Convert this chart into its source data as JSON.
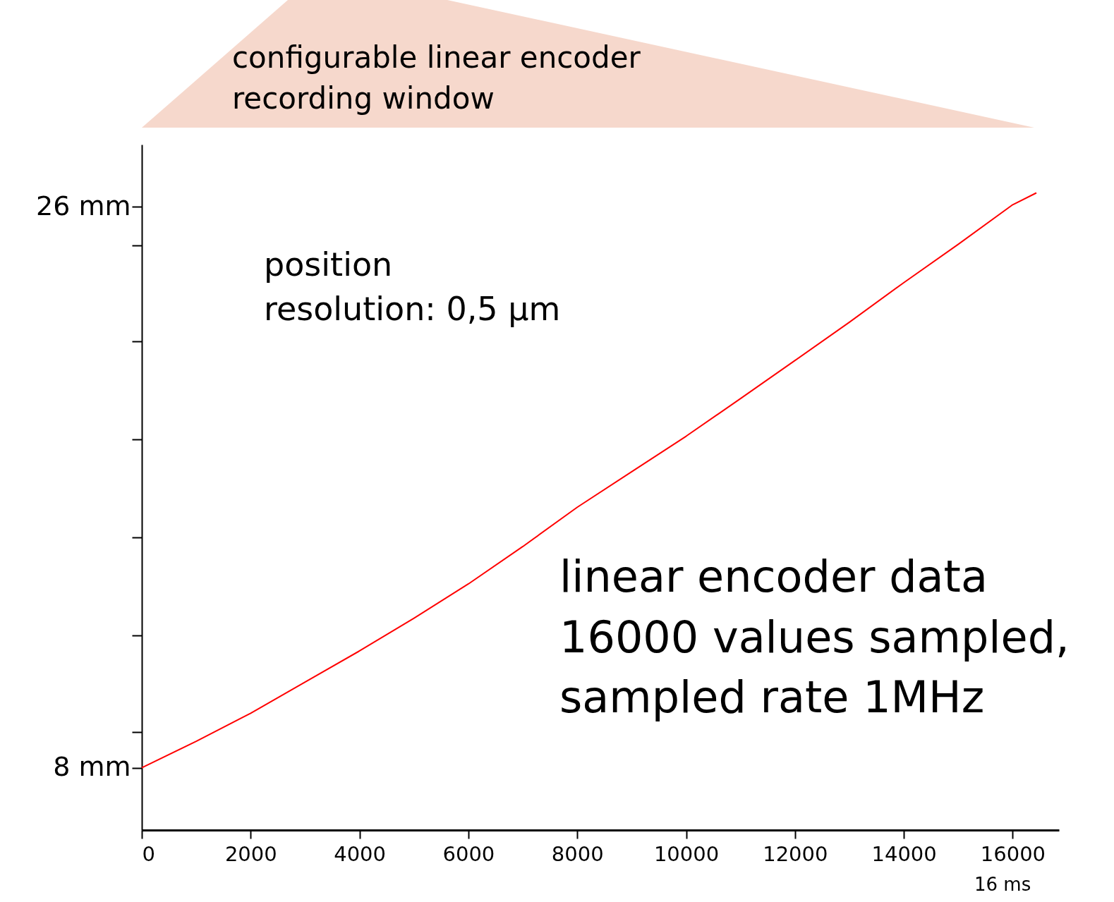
{
  "chart_data": {
    "type": "line",
    "x": [
      0,
      1000,
      2000,
      3000,
      4000,
      5000,
      6000,
      7000,
      8000,
      9000,
      10000,
      11000,
      12000,
      13000,
      14000,
      15000,
      16000,
      16435
    ],
    "series": [
      {
        "color": "#ff0000",
        "values": [
          8.0,
          8.85,
          9.75,
          10.75,
          11.75,
          12.8,
          13.9,
          15.1,
          16.36,
          17.5,
          18.64,
          19.85,
          21.07,
          22.3,
          23.57,
          24.8,
          26.07,
          26.45
        ]
      }
    ],
    "xlim": [
      0,
      16850
    ],
    "xticks": [
      0,
      2000,
      4000,
      6000,
      8000,
      10000,
      12000,
      14000,
      16000
    ],
    "ylim": [
      6,
      28
    ],
    "yticks": [
      {
        "value": 8,
        "label": "8 mm"
      },
      {
        "value": 9.14,
        "label": null
      },
      {
        "value": 12.25,
        "label": null
      },
      {
        "value": 15.39,
        "label": null
      },
      {
        "value": 18.55,
        "label": null
      },
      {
        "value": 21.68,
        "label": null
      },
      {
        "value": 24.77,
        "label": null
      },
      {
        "value": 26,
        "label": "26 mm"
      }
    ],
    "grid": false,
    "marker": "none",
    "line_style": "solid",
    "annotations": [
      "configurable linear encoder\nrecording window",
      "position\nresolution: 0,5 µm",
      "linear encoder data\n16000 values sampled,\nsampled rate 1MHz",
      "16 ms"
    ]
  }
}
